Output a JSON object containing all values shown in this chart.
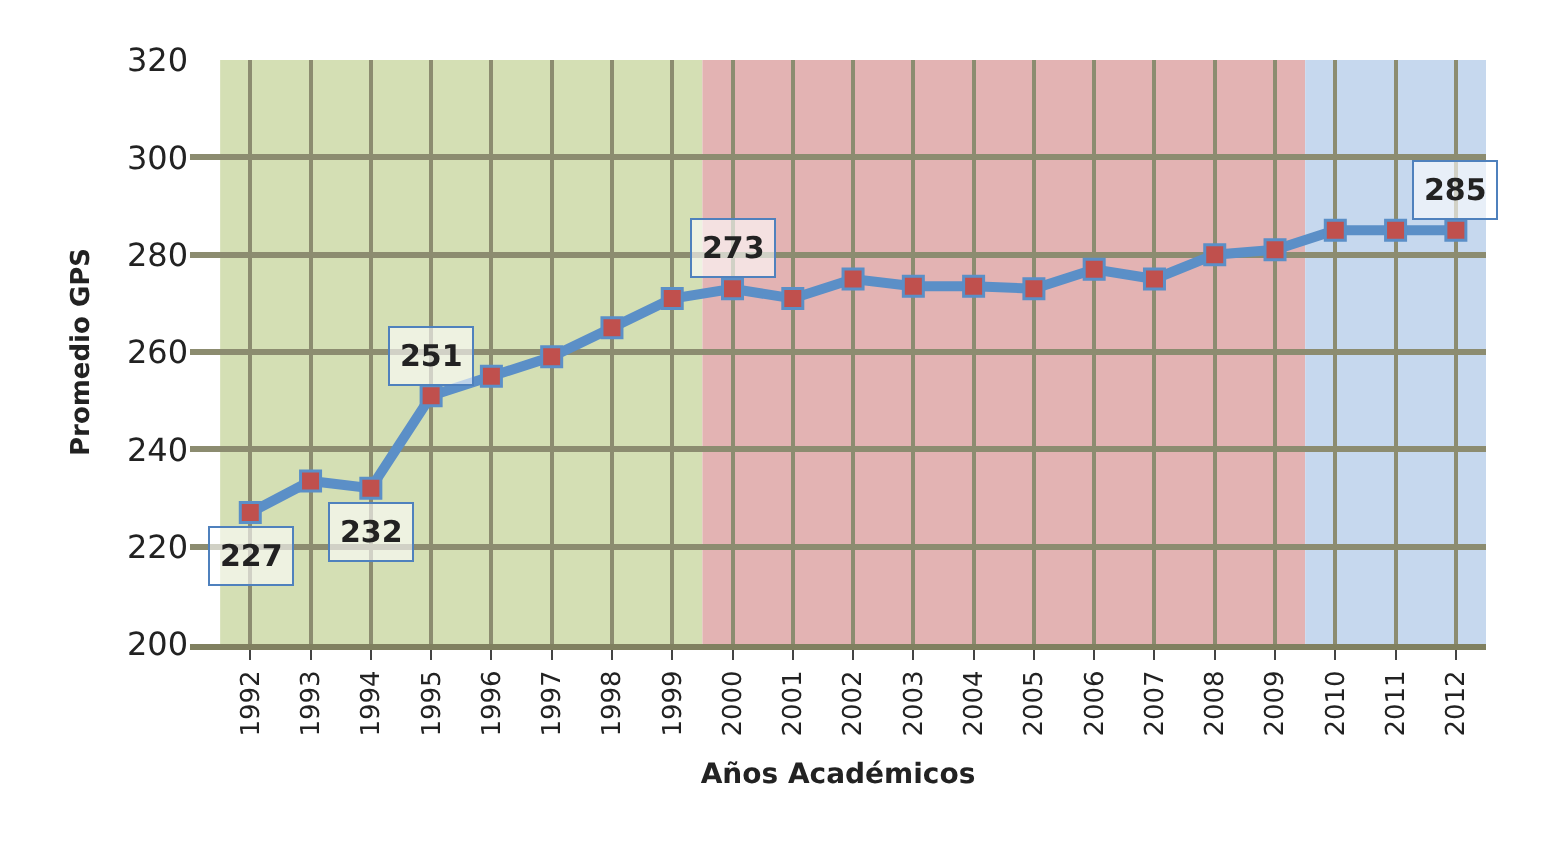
{
  "chart_data": {
    "type": "line",
    "xlabel": "Años Académicos",
    "ylabel": "Promedio GPS",
    "categories": [
      "1992",
      "1993",
      "1994",
      "1995",
      "1996",
      "1997",
      "1998",
      "1999",
      "2000",
      "2001",
      "2002",
      "2003",
      "2004",
      "2005",
      "2006",
      "2007",
      "2008",
      "2009",
      "2010",
      "2011",
      "2012"
    ],
    "series": [
      {
        "color": "#5b8fc7",
        "colors": [
          "#c0504d",
          "#c0504d",
          "#c0504d",
          "#c0504d",
          "#c0504d",
          "#c0504d",
          "#c0504d",
          "#c0504d",
          "#c0504d",
          "#c0504d",
          "#c0504d",
          "#c0504d",
          "#c0504d",
          "#c0504d",
          "#c0504d",
          "#c0504d",
          "#c0504d",
          "#c0504d",
          "#c0504d",
          "#c0504d",
          "#c0504d"
        ],
        "values": [
          227,
          233.5,
          232,
          251,
          255,
          259,
          265,
          271,
          273,
          271,
          275,
          273.5,
          273.5,
          273,
          277,
          275,
          280,
          281,
          285,
          285,
          285
        ],
        "value_labels": [
          "227",
          null,
          "232",
          "251",
          null,
          null,
          null,
          null,
          "273",
          null,
          null,
          null,
          null,
          null,
          null,
          null,
          null,
          null,
          null,
          null,
          "285"
        ]
      }
    ],
    "ylim": [
      200,
      320
    ],
    "yticks": [
      200,
      220,
      240,
      260,
      280,
      300,
      320
    ],
    "grid": true,
    "marker": "square",
    "line_style": "solid",
    "bands": [
      {
        "axis": "x",
        "from": "1992",
        "to": "1999",
        "color": "#d4dfb4"
      },
      {
        "axis": "x",
        "from": "2000",
        "to": "2009",
        "color": "#e3b3b3"
      },
      {
        "axis": "x",
        "from": "2010",
        "to": "2012",
        "color": "#c6d8ee"
      }
    ]
  }
}
